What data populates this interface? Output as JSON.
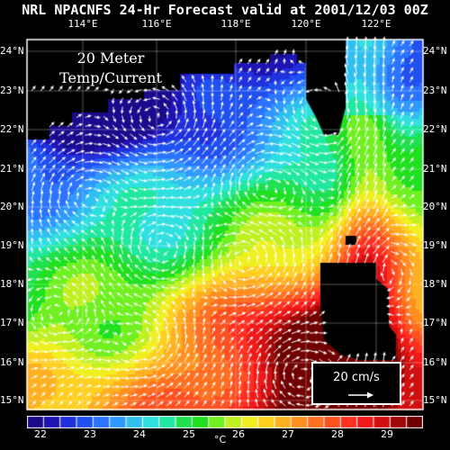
{
  "title": "NRL NPACNFS 24-Hr Forecast valid at 2001/12/03 00Z",
  "product_label_line1": "20 Meter",
  "product_label_line2": "Temp/Current",
  "lon_labels": [
    "114°E",
    "116°E",
    "118°E",
    "120°E",
    "122°E"
  ],
  "lat_labels": [
    "24°N",
    "23°N",
    "22°N",
    "21°N",
    "20°N",
    "19°N",
    "18°N",
    "17°N",
    "16°N",
    "15°N"
  ],
  "legend": {
    "label": "20 cm/s"
  },
  "colorbar": {
    "ticks": [
      "22",
      "23",
      "24",
      "25",
      "26",
      "27",
      "28",
      "29"
    ],
    "unit": "°C",
    "colors": [
      "#1a0a8c",
      "#1e14b4",
      "#2030dc",
      "#2050f0",
      "#2a74ff",
      "#3098ff",
      "#30c0f0",
      "#30e0e0",
      "#20e8a0",
      "#20e050",
      "#20e020",
      "#70f020",
      "#c0f020",
      "#f0f020",
      "#ffd020",
      "#ffb020",
      "#ff9020",
      "#ff7020",
      "#ff5020",
      "#ff3020",
      "#f01818",
      "#d01010",
      "#a00808",
      "#700000"
    ]
  }
}
